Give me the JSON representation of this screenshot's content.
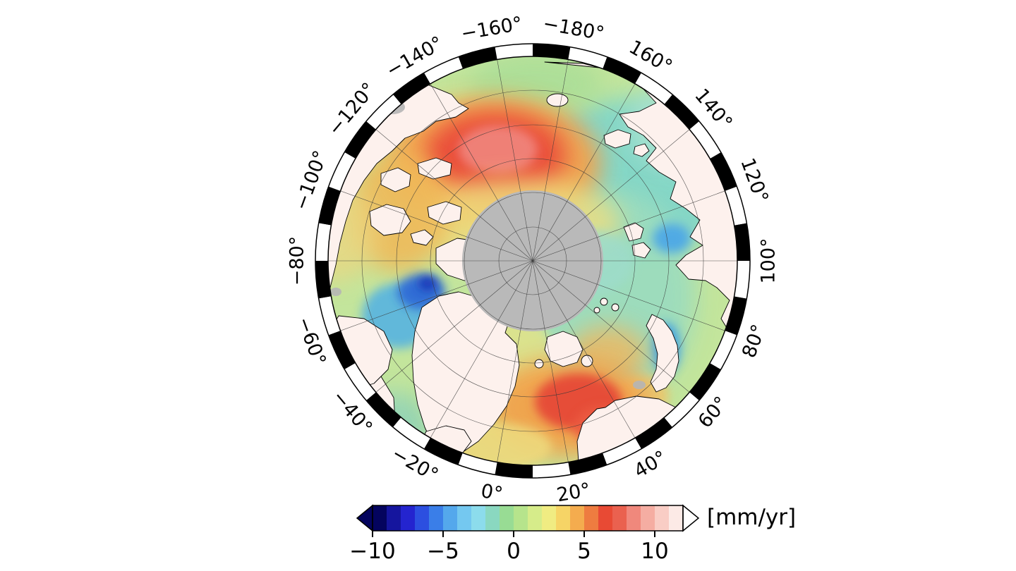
{
  "figure": {
    "background": "#ffffff",
    "description": "Polar stereographic map of the Arctic showing sea level trend in mm/yr"
  },
  "map": {
    "pole_fill_color": "#b9b9b9",
    "land_color": "#fdf1ed",
    "ocean_base_color": "#c3e59c",
    "frame_colors": [
      "#000000",
      "#ffffff"
    ],
    "longitude_labels": [
      {
        "lon": -180,
        "label": "−180°"
      },
      {
        "lon": -160,
        "label": "−160°"
      },
      {
        "lon": -140,
        "label": "−140°"
      },
      {
        "lon": -120,
        "label": "−120°"
      },
      {
        "lon": -100,
        "label": "−100°"
      },
      {
        "lon": -80,
        "label": "−80°"
      },
      {
        "lon": -60,
        "label": "−60°"
      },
      {
        "lon": -40,
        "label": "−40°"
      },
      {
        "lon": -20,
        "label": "−20°"
      },
      {
        "lon": 0,
        "label": "0°"
      },
      {
        "lon": 20,
        "label": "20°"
      },
      {
        "lon": 40,
        "label": "40°"
      },
      {
        "lon": 60,
        "label": "60°"
      },
      {
        "lon": 80,
        "label": "80°"
      },
      {
        "lon": 100,
        "label": "100°"
      },
      {
        "lon": 120,
        "label": "120°"
      },
      {
        "lon": 140,
        "label": "140°"
      },
      {
        "lon": 160,
        "label": "160°"
      }
    ],
    "field_blobs": [
      [
        890,
        255,
        150,
        115,
        "#84d6c6",
        1,
        "big"
      ],
      [
        960,
        180,
        70,
        60,
        "#a9e2d0",
        0.9,
        "big"
      ],
      [
        870,
        420,
        115,
        150,
        "#9bdcbe",
        0.95,
        "big"
      ],
      [
        645,
        180,
        60,
        40,
        "#cfe89a",
        0.8,
        "big"
      ],
      [
        760,
        120,
        95,
        45,
        "#abde98",
        0.9,
        "big"
      ],
      [
        700,
        232,
        152,
        95,
        "#f5a24b",
        0.95,
        "big"
      ],
      [
        702,
        220,
        100,
        62,
        "#ea4f3b",
        1,
        "big"
      ],
      [
        706,
        212,
        56,
        34,
        "#f0837a",
        0.95,
        "small"
      ],
      [
        730,
        315,
        150,
        62,
        "#eede80",
        0.8,
        "big"
      ],
      [
        565,
        302,
        72,
        85,
        "#efba5a",
        0.9,
        "big"
      ],
      [
        478,
        330,
        56,
        70,
        "#ecd680",
        0.75,
        "big"
      ],
      [
        838,
        372,
        60,
        45,
        "#9edcca",
        0.85,
        "small"
      ],
      [
        952,
        338,
        27,
        21,
        "#4ea8e6",
        0.95,
        "small"
      ],
      [
        944,
        494,
        20,
        36,
        "#3f9ee2",
        0.95,
        "small"
      ],
      [
        565,
        448,
        52,
        46,
        "#5cb6de",
        0.95,
        "small"
      ],
      [
        597,
        414,
        34,
        25,
        "#2e6ad6",
        0.95,
        "small"
      ],
      [
        606,
        402,
        13,
        10,
        "#1336b8",
        1,
        "small"
      ],
      [
        558,
        602,
        55,
        45,
        "#8fd2b8",
        0.85,
        "big"
      ],
      [
        695,
        560,
        88,
        58,
        "#c6e68e",
        0.9,
        "big"
      ],
      [
        738,
        505,
        45,
        55,
        "#dfe28c",
        0.85,
        "small"
      ],
      [
        862,
        502,
        56,
        40,
        "#f0b75e",
        0.8,
        "big"
      ],
      [
        908,
        560,
        40,
        28,
        "#f3c468",
        0.8,
        "small"
      ],
      [
        806,
        578,
        115,
        70,
        "#f2a24b",
        0.95,
        "big"
      ],
      [
        820,
        570,
        62,
        40,
        "#e64e38",
        1,
        "small"
      ],
      [
        856,
        606,
        42,
        30,
        "#ec5c42",
        0.9,
        "small"
      ],
      [
        700,
        634,
        82,
        34,
        "#eed87c",
        0.9,
        "small"
      ]
    ]
  },
  "colorbar": {
    "unit_label": "[mm/yr]",
    "tick_values": [
      -10,
      -5,
      0,
      5,
      10
    ],
    "tick_labels": [
      "−10",
      "−5",
      "0",
      "5",
      "10"
    ],
    "cell_colors": [
      "#04045e",
      "#15159e",
      "#2424cf",
      "#2c4fe0",
      "#3a7ee8",
      "#54a8ec",
      "#74c8f0",
      "#8cdcec",
      "#8ad8c0",
      "#98dc94",
      "#b6e48c",
      "#d6ec8a",
      "#f0ec82",
      "#f6d466",
      "#f4ac4e",
      "#ee7c40",
      "#e84a34",
      "#ea614f",
      "#f0887c",
      "#f5ada2",
      "#f9cdc5",
      "#fceae6"
    ],
    "left_arrow_color": "#04045e",
    "right_arrow_color": "#ffffff"
  }
}
